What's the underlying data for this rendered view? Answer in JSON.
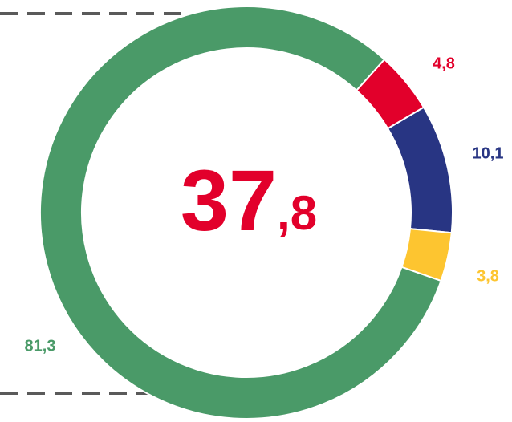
{
  "chart_data": {
    "type": "donut",
    "center_label": "37,8",
    "center_color": "#e2002b",
    "categories": [
      null,
      null,
      null,
      null
    ],
    "values": [
      4.8,
      10.1,
      3.8,
      81.3
    ],
    "value_labels": [
      "4,8",
      "10,1",
      "3,8",
      "81,3"
    ],
    "colors": [
      "#e2002b",
      "#283583",
      "#fdc530",
      "#4a9a68"
    ]
  }
}
